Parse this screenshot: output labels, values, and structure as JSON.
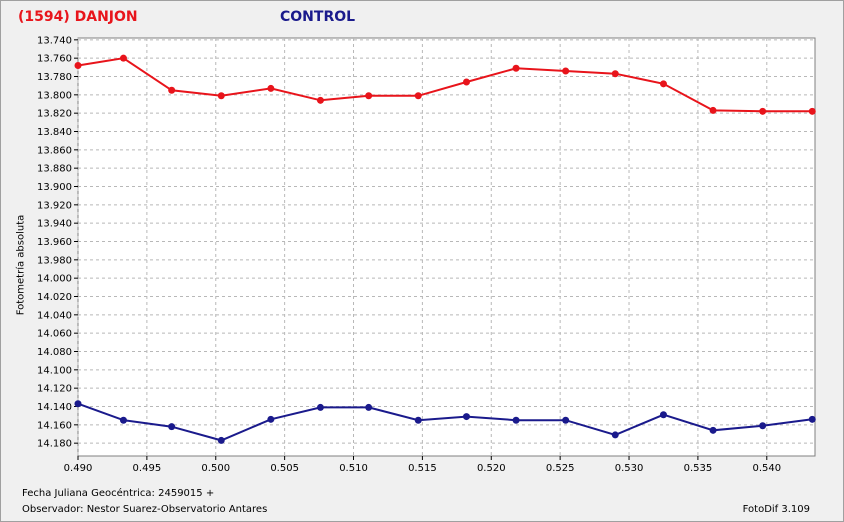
{
  "chart_data": {
    "type": "line",
    "title_target": "(1594) DANJON",
    "title_control": "CONTROL",
    "ylabel": "Fotometría absoluta",
    "xlabel": "",
    "xlim": [
      0.49,
      0.5435
    ],
    "ylim": [
      14.194,
      13.738
    ],
    "y_inverted": true,
    "grid": true,
    "x_ticks": [
      0.49,
      0.495,
      0.5,
      0.505,
      0.51,
      0.515,
      0.52,
      0.525,
      0.53,
      0.535,
      0.54
    ],
    "x_tick_labels": [
      "0.490",
      "0.495",
      "0.500",
      "0.505",
      "0.510",
      "0.515",
      "0.520",
      "0.525",
      "0.530",
      "0.535",
      "0.540"
    ],
    "y_ticks": [
      13.74,
      13.76,
      13.78,
      13.8,
      13.82,
      13.84,
      13.86,
      13.88,
      13.9,
      13.92,
      13.94,
      13.96,
      13.98,
      14.0,
      14.02,
      14.04,
      14.06,
      14.08,
      14.1,
      14.12,
      14.14,
      14.16,
      14.18
    ],
    "y_tick_labels": [
      "13.740",
      "13.760",
      "13.780",
      "13.800",
      "13.820",
      "13.840",
      "13.860",
      "13.880",
      "13.900",
      "13.920",
      "13.940",
      "13.960",
      "13.980",
      "14.000",
      "14.020",
      "14.040",
      "14.060",
      "14.080",
      "14.100",
      "14.120",
      "14.140",
      "14.160",
      "14.180"
    ],
    "series": [
      {
        "color": "#e8141b",
        "x": [
          0.49,
          0.4933,
          0.4968,
          0.5004,
          0.504,
          0.5076,
          0.5111,
          0.5147,
          0.5182,
          0.5218,
          0.5254,
          0.529,
          0.5325,
          0.5361,
          0.5397,
          0.5433
        ],
        "y": [
          13.768,
          13.76,
          13.795,
          13.801,
          13.793,
          13.806,
          13.801,
          13.801,
          13.786,
          13.771,
          13.774,
          13.777,
          13.788,
          13.817,
          13.818,
          13.818
        ]
      },
      {
        "color": "#1a1a8c",
        "x": [
          0.49,
          0.4933,
          0.4968,
          0.5004,
          0.504,
          0.5076,
          0.5111,
          0.5147,
          0.5182,
          0.5218,
          0.5254,
          0.529,
          0.5325,
          0.5361,
          0.5397,
          0.5433
        ],
        "y": [
          14.137,
          14.155,
          14.162,
          14.177,
          14.154,
          14.141,
          14.141,
          14.155,
          14.151,
          14.155,
          14.155,
          14.171,
          14.149,
          14.166,
          14.161,
          14.154
        ]
      }
    ]
  },
  "footer": {
    "date_label": "Fecha Juliana Geocéntrica: 2459015 +",
    "observer_label": "Observador: Nestor Suarez-Observatorio Antares",
    "software": "FotoDif 3.109"
  }
}
